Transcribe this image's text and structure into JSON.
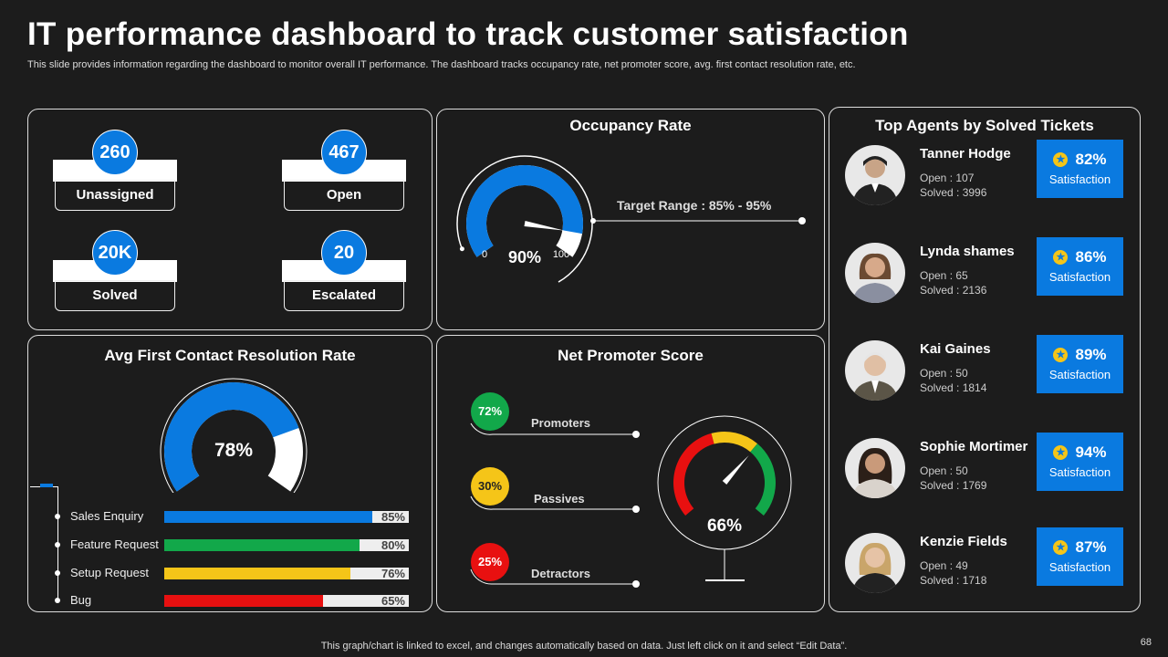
{
  "header": {
    "title": "IT performance dashboard to track customer satisfaction",
    "subtitle": "This slide provides information regarding the dashboard to monitor overall IT performance. The dashboard tracks occupancy rate, net promoter score, avg. first contact resolution rate, etc."
  },
  "tickets": {
    "unassigned": {
      "value": "260",
      "label": "Unassigned"
    },
    "open": {
      "value": "467",
      "label": "Open"
    },
    "solved": {
      "value": "20K",
      "label": "Solved"
    },
    "escalated": {
      "value": "20",
      "label": "Escalated"
    }
  },
  "occupancy": {
    "title": "Occupancy Rate",
    "value": 90,
    "value_label": "90%",
    "min_label": "0",
    "max_label": "100",
    "target_label": "Target Range : 85% - 95%"
  },
  "frc": {
    "title": "Avg First Contact Resolution Rate",
    "value": 78,
    "value_label": "78%",
    "rows": [
      {
        "label": "Sales Enquiry",
        "pct": 85,
        "pct_label": "85%",
        "color": "#0a7ae0"
      },
      {
        "label": "Feature Request",
        "pct": 80,
        "pct_label": "80%",
        "color": "#12a84a"
      },
      {
        "label": "Setup Request",
        "pct": 76,
        "pct_label": "76%",
        "color": "#f5c518"
      },
      {
        "label": "Bug",
        "pct": 65,
        "pct_label": "65%",
        "color": "#e81010"
      }
    ]
  },
  "nps": {
    "title": "Net Promoter Score",
    "value": 66,
    "value_label": "66%",
    "promoters": {
      "label": "Promoters",
      "value": "72%",
      "color": "#12a84a"
    },
    "passives": {
      "label": "Passives",
      "value": "30%",
      "color": "#f5c518"
    },
    "detractors": {
      "label": "Detractors",
      "value": "25%",
      "color": "#e81010"
    }
  },
  "agents": {
    "title": "Top Agents by Solved Tickets",
    "satisfaction_label": "Satisfaction",
    "list": [
      {
        "name": "Tanner Hodge",
        "open": "Open  : 107",
        "solved": "Solved  : 3996",
        "pct": "82%"
      },
      {
        "name": "Lynda shames",
        "open": "Open  : 65",
        "solved": "Solved  : 2136",
        "pct": "86%"
      },
      {
        "name": "Kai Gaines",
        "open": "Open  : 50",
        "solved": "Solved  : 1814",
        "pct": "89%"
      },
      {
        "name": "Sophie Mortimer",
        "open": "Open  : 50",
        "solved": "Solved  : 1769",
        "pct": "94%"
      },
      {
        "name": "Kenzie Fields",
        "open": "Open  : 49",
        "solved": "Solved  : 1718",
        "pct": "87%"
      }
    ]
  },
  "footer": {
    "note": "This graph/chart is linked to excel,  and changes automatically based on data. Just left click on it and select “Edit Data”.",
    "page": "68"
  }
}
